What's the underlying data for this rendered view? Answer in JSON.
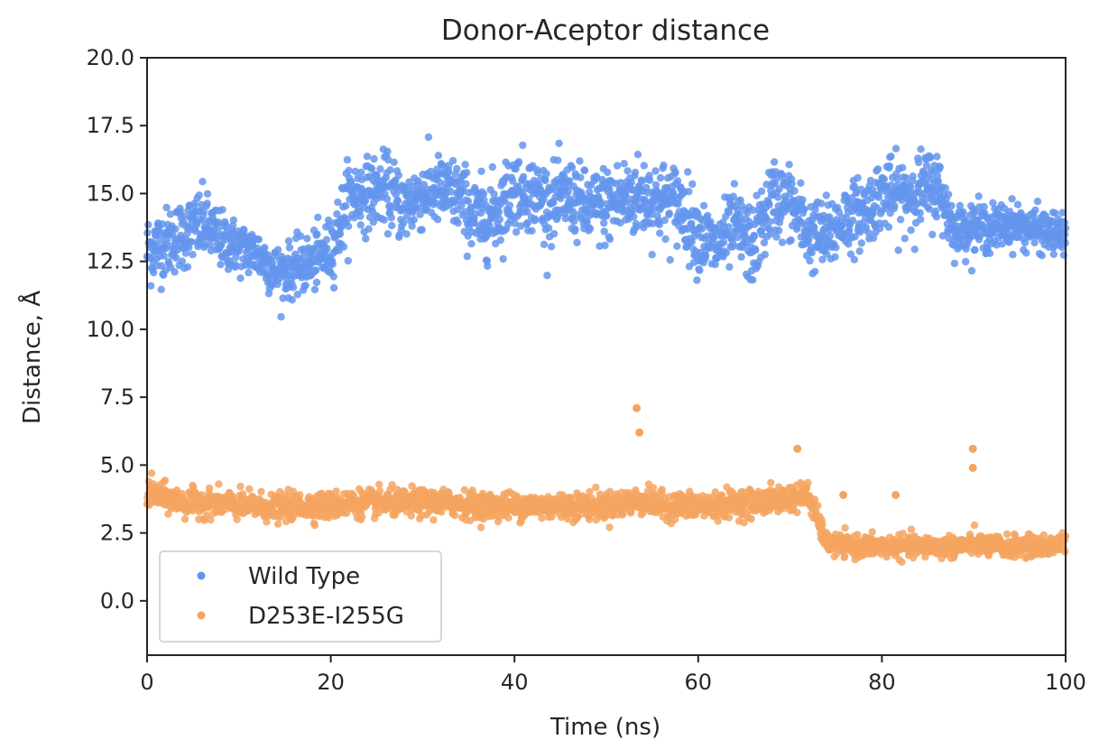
{
  "chart_data": {
    "type": "scatter",
    "title": "Donor-Aceptor distance",
    "xlabel": "Time (ns)",
    "ylabel": "Distance, Å",
    "xlim": [
      0,
      100
    ],
    "ylim": [
      -2.0,
      20.0
    ],
    "xticks": [
      0,
      20,
      40,
      60,
      80,
      100
    ],
    "yticks": [
      0.0,
      2.5,
      5.0,
      7.5,
      10.0,
      12.5,
      15.0,
      17.5,
      20.0
    ],
    "xtick_labels": [
      "0",
      "20",
      "40",
      "60",
      "80",
      "100"
    ],
    "ytick_labels": [
      "0.0",
      "2.5",
      "5.0",
      "7.5",
      "10.0",
      "12.5",
      "15.0",
      "17.5",
      "20.0"
    ],
    "legend_position": "lower-left",
    "series": [
      {
        "name": "Wild Type",
        "color": "#6495ED",
        "x": [
          0,
          2,
          4,
          6,
          8,
          10,
          12,
          14,
          16,
          18,
          20,
          22,
          24,
          26,
          28,
          30,
          32,
          34,
          36,
          38,
          40,
          42,
          44,
          46,
          48,
          50,
          52,
          54,
          56,
          58,
          60,
          62,
          64,
          66,
          68,
          70,
          72,
          74,
          76,
          78,
          80,
          82,
          84,
          86,
          88,
          90,
          92,
          94,
          96,
          98,
          100
        ],
        "mean": [
          12.9,
          13.2,
          13.5,
          13.9,
          13.3,
          13.0,
          12.8,
          12.1,
          12.2,
          12.5,
          12.9,
          14.9,
          15.0,
          15.2,
          14.5,
          15.0,
          15.1,
          14.9,
          14.0,
          14.3,
          15.2,
          15.0,
          14.6,
          14.9,
          14.4,
          14.6,
          14.8,
          14.9,
          14.7,
          14.6,
          13.5,
          13.0,
          13.8,
          13.0,
          14.8,
          14.7,
          13.5,
          13.4,
          14.1,
          14.3,
          15.0,
          14.9,
          15.1,
          15.3,
          13.6,
          13.8,
          13.7,
          13.9,
          13.7,
          13.6,
          13.4
        ],
        "spread": [
          1.4,
          1.3,
          1.3,
          1.3,
          1.1,
          1.0,
          1.0,
          1.0,
          1.0,
          1.1,
          1.2,
          1.4,
          1.3,
          1.3,
          1.4,
          1.3,
          1.3,
          1.4,
          1.5,
          1.5,
          1.5,
          1.4,
          1.4,
          1.4,
          1.4,
          1.5,
          1.6,
          1.5,
          1.5,
          1.5,
          1.4,
          1.3,
          1.4,
          1.5,
          1.5,
          1.4,
          1.3,
          1.4,
          1.3,
          1.3,
          1.3,
          1.4,
          1.4,
          1.4,
          0.9,
          0.9,
          0.9,
          0.8,
          0.8,
          0.8,
          0.8
        ],
        "n_points": 2400
      },
      {
        "name": "D253E-I255G",
        "color": "#F4A460",
        "x": [
          0,
          2,
          4,
          6,
          8,
          10,
          12,
          14,
          16,
          18,
          20,
          22,
          24,
          26,
          28,
          30,
          32,
          34,
          36,
          38,
          40,
          42,
          44,
          46,
          48,
          50,
          52,
          54,
          56,
          58,
          60,
          62,
          64,
          66,
          68,
          70,
          72,
          74,
          76,
          78,
          80,
          82,
          84,
          86,
          88,
          90,
          92,
          94,
          96,
          98,
          100
        ],
        "mean": [
          4.0,
          3.8,
          3.6,
          3.6,
          3.6,
          3.5,
          3.5,
          3.4,
          3.5,
          3.5,
          3.5,
          3.6,
          3.6,
          3.6,
          3.6,
          3.6,
          3.6,
          3.6,
          3.5,
          3.5,
          3.5,
          3.5,
          3.5,
          3.5,
          3.5,
          3.5,
          3.6,
          3.7,
          3.5,
          3.5,
          3.5,
          3.5,
          3.6,
          3.6,
          3.7,
          3.8,
          3.9,
          2.1,
          2.0,
          2.0,
          2.0,
          2.0,
          2.0,
          2.0,
          2.0,
          2.1,
          2.0,
          2.0,
          2.0,
          2.0,
          2.1
        ],
        "spread": [
          0.6,
          0.5,
          0.5,
          0.5,
          0.5,
          0.5,
          0.5,
          0.5,
          0.5,
          0.5,
          0.5,
          0.5,
          0.5,
          0.5,
          0.5,
          0.5,
          0.5,
          0.5,
          0.5,
          0.5,
          0.5,
          0.5,
          0.5,
          0.5,
          0.5,
          0.5,
          0.5,
          0.5,
          0.5,
          0.5,
          0.5,
          0.5,
          0.5,
          0.5,
          0.5,
          0.5,
          0.5,
          0.4,
          0.4,
          0.4,
          0.4,
          0.4,
          0.4,
          0.4,
          0.4,
          0.4,
          0.4,
          0.4,
          0.4,
          0.4,
          0.4
        ],
        "n_points": 2400,
        "spikes": [
          {
            "x": 53.3,
            "y": 7.1
          },
          {
            "x": 53.6,
            "y": 6.2
          },
          {
            "x": 70.8,
            "y": 5.6
          },
          {
            "x": 89.9,
            "y": 5.6
          },
          {
            "x": 89.9,
            "y": 4.9
          },
          {
            "x": 81.5,
            "y": 3.9
          },
          {
            "x": 75.8,
            "y": 3.9
          }
        ]
      }
    ]
  }
}
